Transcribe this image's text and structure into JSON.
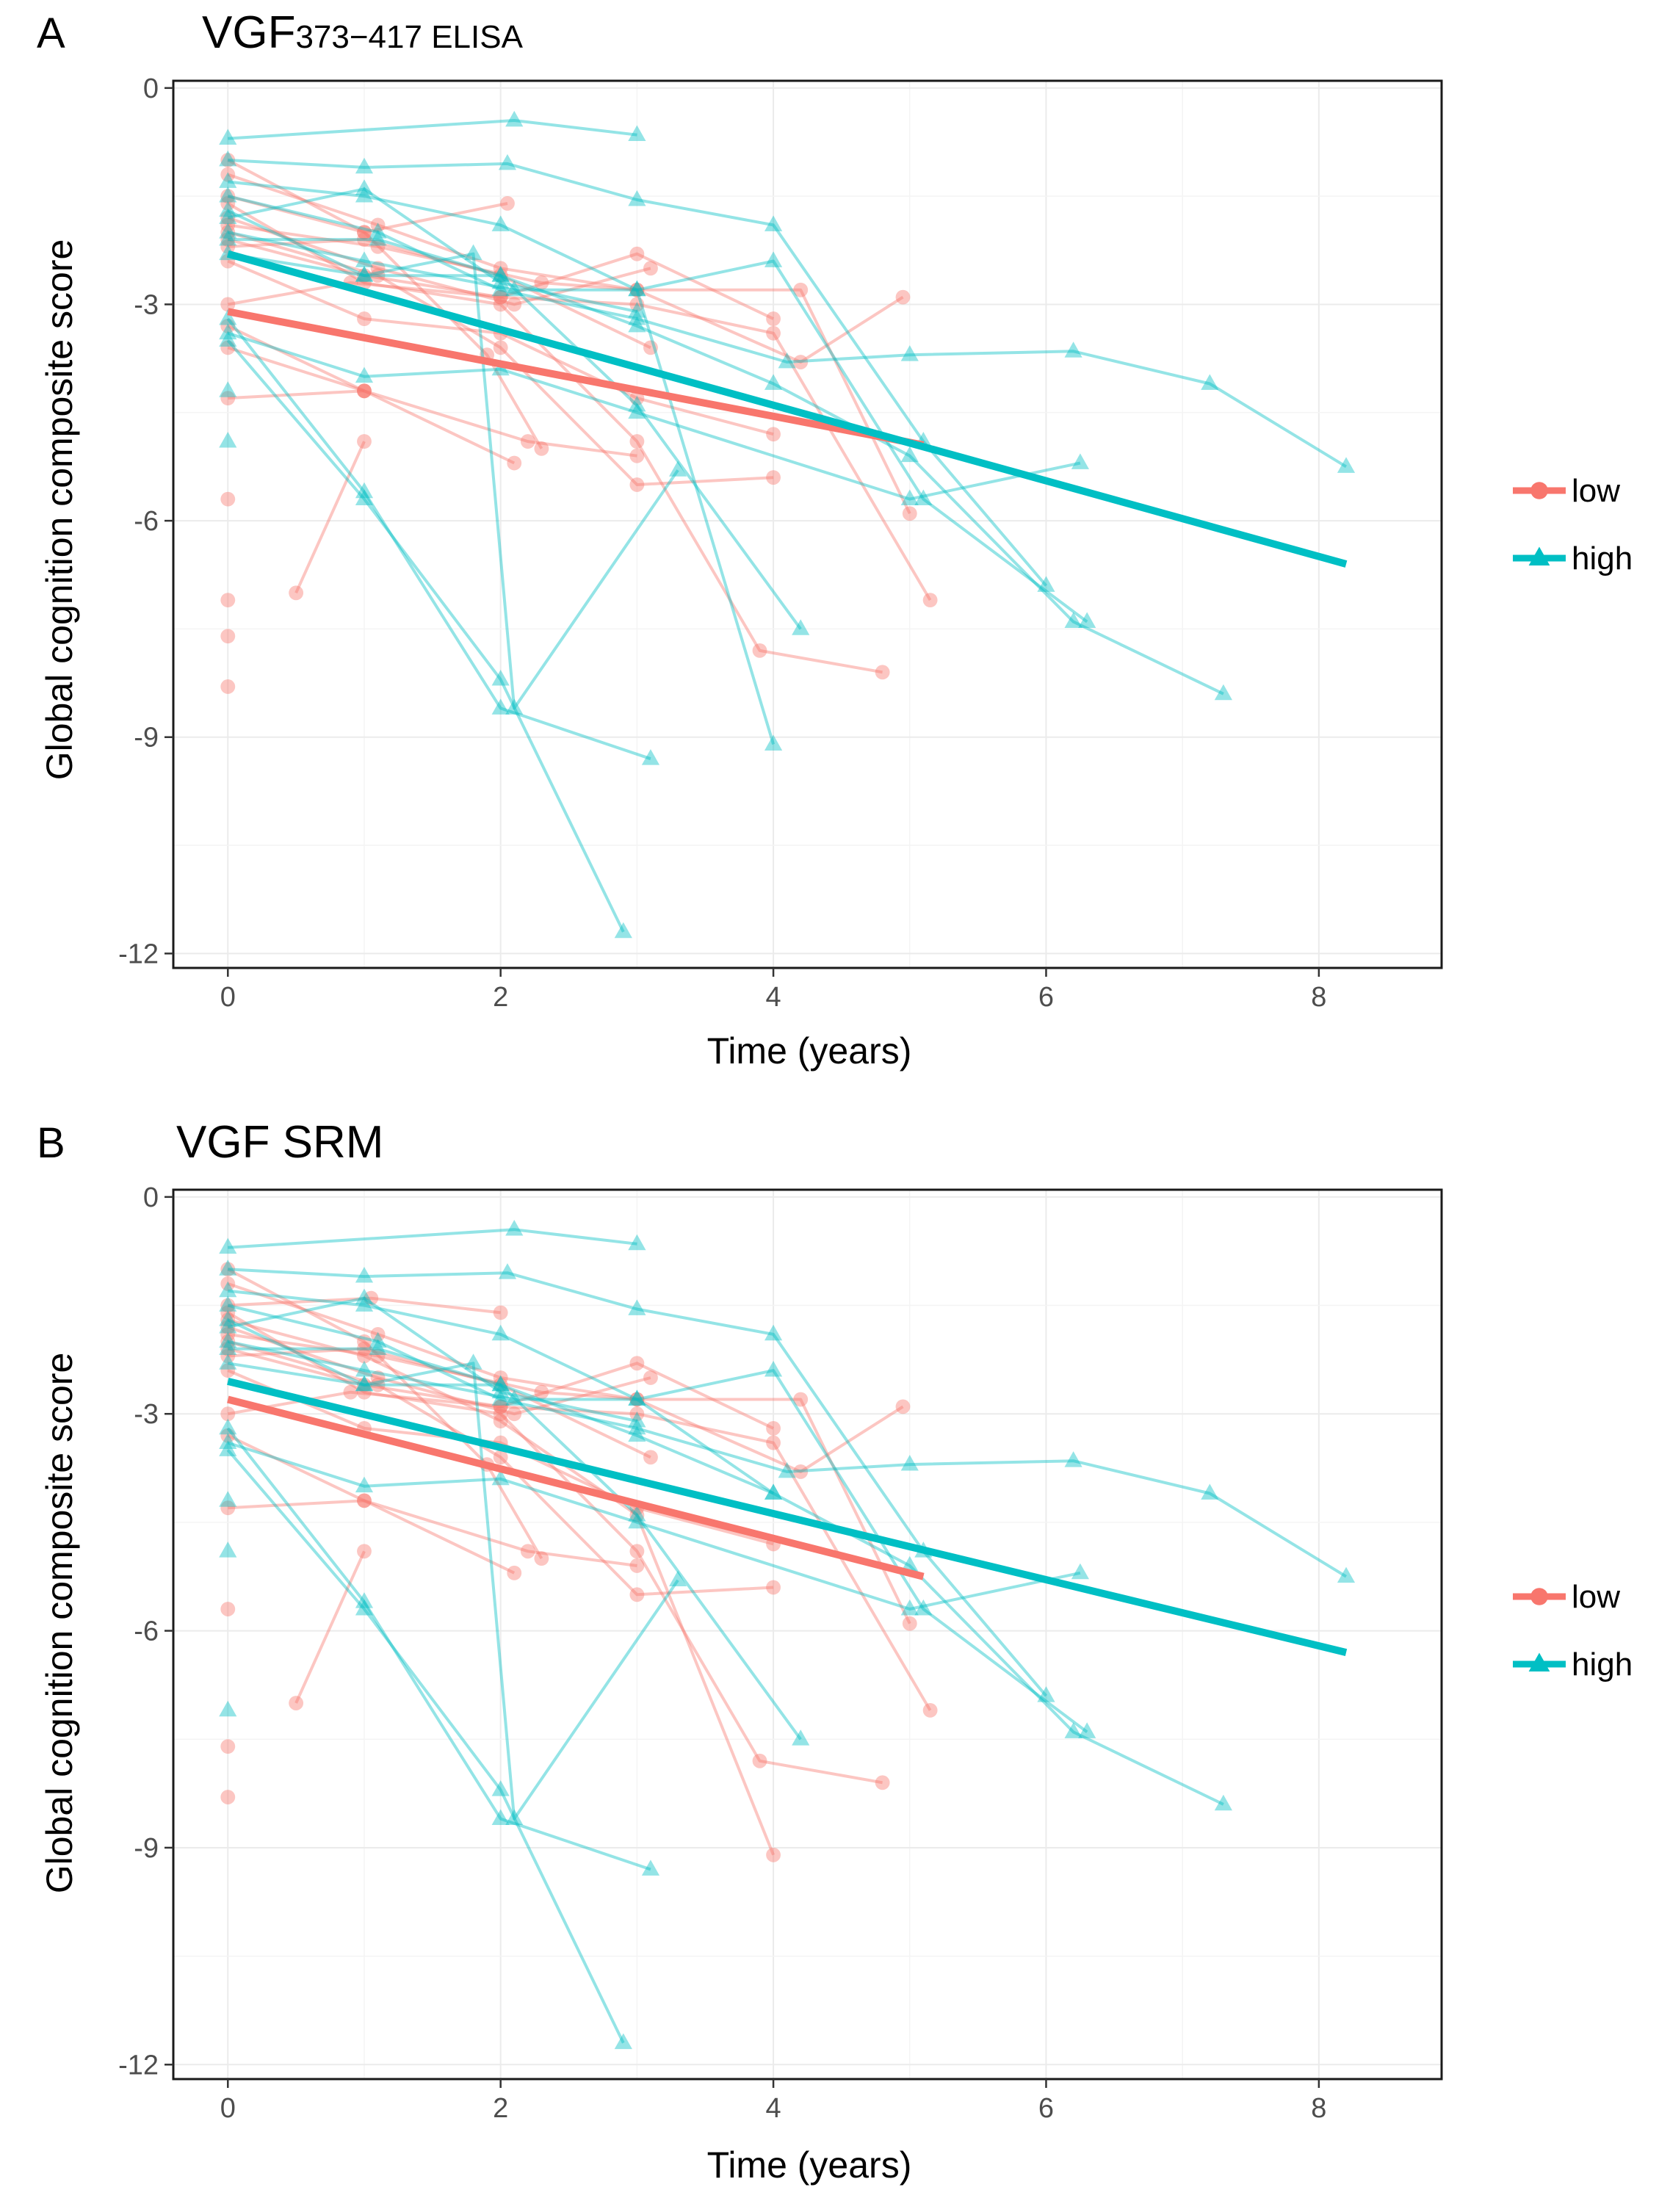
{
  "colors": {
    "low": "#F8766D",
    "high": "#00BFC4"
  },
  "chart_data": [
    {
      "type": "line",
      "panel_label": "A",
      "title_main": "VGF",
      "title_sub": "373−417 ELISA",
      "xlabel": "Time (years)",
      "ylabel": "Global cognition composite score",
      "xlim": [
        -0.4,
        8.9
      ],
      "ylim": [
        -12.2,
        0.1
      ],
      "x_ticks": [
        0,
        2,
        4,
        6,
        8
      ],
      "x_tick_labels": [
        "0",
        "2",
        "4",
        "6",
        "8"
      ],
      "y_ticks": [
        0,
        -3,
        -6,
        -9,
        -12
      ],
      "y_tick_labels": [
        "0",
        "-3",
        "-6",
        "-9",
        "-12"
      ],
      "grid": true,
      "legend": {
        "position": "right",
        "entries": [
          {
            "group": "low",
            "label": "low"
          },
          {
            "group": "high",
            "label": "high"
          }
        ]
      },
      "fits": [
        {
          "group": "low",
          "x": [
            0,
            5.1
          ],
          "y": [
            -3.1,
            -4.95
          ]
        },
        {
          "group": "high",
          "x": [
            0,
            8.2
          ],
          "y": [
            -2.3,
            -6.6
          ]
        }
      ],
      "series": [
        {
          "group": "low",
          "x": [
            0,
            1,
            2.05
          ],
          "y": [
            -1.5,
            -2.0,
            -1.6
          ]
        },
        {
          "group": "low",
          "x": [
            0,
            1.1,
            2.1,
            3.1
          ],
          "y": [
            -1.8,
            -2.5,
            -3.0,
            -2.5
          ]
        },
        {
          "group": "low",
          "x": [
            0,
            0.9,
            2.0,
            3.0,
            4.0
          ],
          "y": [
            -3.0,
            -2.7,
            -2.9,
            -2.3,
            -3.2
          ]
        },
        {
          "group": "low",
          "x": [
            0,
            1.0,
            2.2,
            3.0
          ],
          "y": [
            -4.3,
            -4.2,
            -4.9,
            -5.1
          ]
        },
        {
          "group": "low",
          "x": [
            0,
            1.1,
            2.0,
            3.0,
            4.0
          ],
          "y": [
            -2.0,
            -2.6,
            -3.6,
            -5.5,
            -5.4
          ]
        },
        {
          "group": "low",
          "x": [
            0,
            1.0,
            2.1
          ],
          "y": [
            -3.3,
            -4.2,
            -5.2
          ]
        },
        {
          "group": "low",
          "x": [
            0,
            1.0
          ],
          "y": [
            -3.6,
            -4.2
          ]
        },
        {
          "group": "low",
          "x": [
            0,
            1.0,
            2.0,
            3.0,
            3.9,
            4.8
          ],
          "y": [
            -1.6,
            -2.7,
            -3.0,
            -4.9,
            -7.8,
            -8.1
          ]
        },
        {
          "group": "low",
          "x": [
            0.5,
            1.0
          ],
          "y": [
            -7.0,
            -4.9
          ]
        },
        {
          "group": "low",
          "x": [
            0,
            1.0,
            2.0,
            3.0,
            4.0
          ],
          "y": [
            -2.4,
            -3.2,
            -3.4,
            -4.3,
            -4.8
          ]
        },
        {
          "group": "low",
          "x": [
            0,
            1.1,
            2.0,
            3.0,
            4.2,
            5.0
          ],
          "y": [
            -1.2,
            -1.9,
            -2.5,
            -2.8,
            -2.8,
            -5.9
          ]
        },
        {
          "group": "low",
          "x": [
            0,
            1.0,
            2.0,
            3.1
          ],
          "y": [
            -2.2,
            -2.1,
            -2.6,
            -3.6
          ]
        },
        {
          "group": "low",
          "x": [
            0,
            1.1,
            2.3,
            3.0,
            4.2,
            4.95
          ],
          "y": [
            -1.9,
            -2.2,
            -2.7,
            -2.8,
            -3.8,
            -2.9
          ]
        },
        {
          "group": "low",
          "x": [
            0,
            1.0,
            2.0,
            3.0,
            4.0,
            5.15
          ],
          "y": [
            -2.1,
            -2.6,
            -2.9,
            -3.0,
            -3.4,
            -7.1
          ]
        },
        {
          "group": "low",
          "x": [
            0,
            1.0,
            1.9,
            2.3
          ],
          "y": [
            -1.0,
            -2.0,
            -3.7,
            -5.0
          ]
        },
        {
          "group": "low",
          "x": [
            0
          ],
          "y": [
            -5.7
          ]
        },
        {
          "group": "low",
          "x": [
            0
          ],
          "y": [
            -7.1
          ]
        },
        {
          "group": "low",
          "x": [
            0
          ],
          "y": [
            -7.6
          ]
        },
        {
          "group": "low",
          "x": [
            0
          ],
          "y": [
            -8.3
          ]
        },
        {
          "group": "high",
          "x": [
            0,
            2.1,
            3.0
          ],
          "y": [
            -0.7,
            -0.45,
            -0.65
          ]
        },
        {
          "group": "high",
          "x": [
            0,
            1.0,
            2.05,
            3.0,
            4.0,
            5.1,
            6.0
          ],
          "y": [
            -1.0,
            -1.1,
            -1.05,
            -1.55,
            -1.9,
            -4.9,
            -6.9
          ]
        },
        {
          "group": "high",
          "x": [
            0,
            1.0,
            2.0,
            3.0
          ],
          "y": [
            -1.8,
            -1.4,
            -2.7,
            -3.1
          ]
        },
        {
          "group": "high",
          "x": [
            0,
            1.1,
            2.0,
            3.0,
            4.1,
            5.0,
            6.2,
            7.2,
            8.2
          ],
          "y": [
            -1.5,
            -2.0,
            -2.8,
            -3.2,
            -3.8,
            -3.7,
            -3.65,
            -4.1,
            -5.25
          ]
        },
        {
          "group": "high",
          "x": [
            0,
            1.0,
            2.1,
            3.0,
            4.0,
            5.1,
            6.3
          ],
          "y": [
            -2.0,
            -2.4,
            -2.8,
            -2.8,
            -2.4,
            -5.7,
            -7.4
          ]
        },
        {
          "group": "high",
          "x": [
            0,
            1.0,
            2.0,
            3.1
          ],
          "y": [
            -3.2,
            -5.6,
            -8.6,
            -9.3
          ]
        },
        {
          "group": "high",
          "x": [
            0,
            1.0,
            2.0,
            2.9
          ],
          "y": [
            -3.5,
            -5.7,
            -8.2,
            -11.7
          ]
        },
        {
          "group": "high",
          "x": [
            0,
            1.0,
            1.8,
            2.1,
            3.3
          ],
          "y": [
            -2.3,
            -2.6,
            -2.3,
            -8.6,
            -5.3
          ]
        },
        {
          "group": "high",
          "x": [
            0,
            1.0,
            2.0,
            3.0,
            4.0
          ],
          "y": [
            -1.3,
            -1.5,
            -1.9,
            -2.8,
            -9.1
          ]
        },
        {
          "group": "high",
          "x": [
            0,
            1.0,
            2.0,
            3.0,
            4.2
          ],
          "y": [
            -1.7,
            -2.6,
            -2.6,
            -4.4,
            -7.5
          ]
        },
        {
          "group": "high",
          "x": [
            0,
            1.1,
            2.0,
            3.0,
            4.0,
            5.0,
            6.2,
            7.3
          ],
          "y": [
            -2.1,
            -2.1,
            -2.6,
            -3.3,
            -4.1,
            -5.1,
            -7.4,
            -8.4
          ]
        },
        {
          "group": "high",
          "x": [
            0,
            1.0,
            2.0,
            3.0,
            5.0,
            6.25
          ],
          "y": [
            -3.4,
            -4.0,
            -3.9,
            -4.5,
            -5.7,
            -5.2
          ]
        },
        {
          "group": "high",
          "x": [
            0
          ],
          "y": [
            -4.2
          ]
        },
        {
          "group": "high",
          "x": [
            0
          ],
          "y": [
            -4.9
          ]
        }
      ]
    },
    {
      "type": "line",
      "panel_label": "B",
      "title_main": "VGF SRM",
      "title_sub": "",
      "xlabel": "Time (years)",
      "ylabel": "Global cognition composite score",
      "xlim": [
        -0.4,
        8.9
      ],
      "ylim": [
        -12.2,
        0.1
      ],
      "x_ticks": [
        0,
        2,
        4,
        6,
        8
      ],
      "x_tick_labels": [
        "0",
        "2",
        "4",
        "6",
        "8"
      ],
      "y_ticks": [
        0,
        -3,
        -6,
        -9,
        -12
      ],
      "y_tick_labels": [
        "0",
        "-3",
        "-6",
        "-9",
        "-12"
      ],
      "grid": true,
      "legend": {
        "position": "right",
        "entries": [
          {
            "group": "low",
            "label": "low"
          },
          {
            "group": "high",
            "label": "high"
          }
        ]
      },
      "fits": [
        {
          "group": "low",
          "x": [
            0,
            5.1
          ],
          "y": [
            -2.8,
            -5.25
          ]
        },
        {
          "group": "high",
          "x": [
            0,
            8.2
          ],
          "y": [
            -2.55,
            -6.3
          ]
        }
      ],
      "series": [
        {
          "group": "low",
          "x": [
            0,
            1.05,
            2.0
          ],
          "y": [
            -1.5,
            -1.4,
            -1.6
          ]
        },
        {
          "group": "low",
          "x": [
            0,
            1.1,
            2.1,
            3.1
          ],
          "y": [
            -1.8,
            -2.5,
            -3.0,
            -2.5
          ]
        },
        {
          "group": "low",
          "x": [
            0,
            0.9,
            2.0,
            3.0,
            4.0
          ],
          "y": [
            -3.0,
            -2.7,
            -2.9,
            -2.3,
            -3.2
          ]
        },
        {
          "group": "low",
          "x": [
            0,
            1.0,
            2.2,
            3.0
          ],
          "y": [
            -4.3,
            -4.2,
            -4.9,
            -5.1
          ]
        },
        {
          "group": "low",
          "x": [
            0,
            1.1,
            2.0,
            3.0,
            4.0
          ],
          "y": [
            -2.0,
            -2.6,
            -3.6,
            -5.5,
            -5.4
          ]
        },
        {
          "group": "low",
          "x": [
            0,
            1.0,
            2.1
          ],
          "y": [
            -3.3,
            -4.2,
            -5.2
          ]
        },
        {
          "group": "low",
          "x": [
            0,
            1.0,
            2.0,
            3.0,
            3.9,
            4.8
          ],
          "y": [
            -1.6,
            -2.7,
            -3.0,
            -4.9,
            -7.8,
            -8.1
          ]
        },
        {
          "group": "low",
          "x": [
            0.5,
            1.0
          ],
          "y": [
            -7.0,
            -4.9
          ]
        },
        {
          "group": "low",
          "x": [
            0,
            1.0,
            2.0,
            3.0,
            4.0
          ],
          "y": [
            -2.4,
            -3.2,
            -3.4,
            -4.3,
            -4.8
          ]
        },
        {
          "group": "low",
          "x": [
            0,
            1.1,
            2.0,
            3.0,
            4.2,
            5.0
          ],
          "y": [
            -1.2,
            -1.9,
            -2.5,
            -2.8,
            -2.8,
            -5.9
          ]
        },
        {
          "group": "low",
          "x": [
            0,
            1.0,
            2.0,
            3.1
          ],
          "y": [
            -2.2,
            -2.1,
            -2.6,
            -3.6
          ]
        },
        {
          "group": "low",
          "x": [
            0,
            1.1,
            2.3,
            3.0,
            4.2,
            4.95
          ],
          "y": [
            -1.9,
            -2.2,
            -2.7,
            -2.8,
            -3.8,
            -2.9
          ]
        },
        {
          "group": "low",
          "x": [
            0,
            1.0,
            2.0,
            3.0,
            4.0,
            5.15
          ],
          "y": [
            -2.1,
            -2.6,
            -2.9,
            -3.0,
            -3.4,
            -7.1
          ]
        },
        {
          "group": "low",
          "x": [
            0,
            1.0,
            1.9,
            2.3
          ],
          "y": [
            -1.0,
            -2.0,
            -3.7,
            -5.0
          ]
        },
        {
          "group": "low",
          "x": [
            0,
            1.0,
            2.0,
            3.0,
            4.0
          ],
          "y": [
            -1.7,
            -2.2,
            -3.1,
            -4.4,
            -9.1
          ]
        },
        {
          "group": "low",
          "x": [
            0
          ],
          "y": [
            -5.7
          ]
        },
        {
          "group": "low",
          "x": [
            0
          ],
          "y": [
            -7.6
          ]
        },
        {
          "group": "low",
          "x": [
            0
          ],
          "y": [
            -8.3
          ]
        },
        {
          "group": "high",
          "x": [
            0,
            2.1,
            3.0
          ],
          "y": [
            -0.7,
            -0.45,
            -0.65
          ]
        },
        {
          "group": "high",
          "x": [
            0,
            1.0,
            2.05,
            3.0,
            4.0,
            5.1,
            6.0
          ],
          "y": [
            -1.0,
            -1.1,
            -1.05,
            -1.55,
            -1.9,
            -4.9,
            -6.9
          ]
        },
        {
          "group": "high",
          "x": [
            0,
            1.0,
            2.0,
            3.0
          ],
          "y": [
            -1.8,
            -1.4,
            -2.7,
            -3.1
          ]
        },
        {
          "group": "high",
          "x": [
            0,
            1.1,
            2.0,
            3.0,
            4.1,
            5.0,
            6.2,
            7.2,
            8.2
          ],
          "y": [
            -1.5,
            -2.0,
            -2.8,
            -3.2,
            -3.8,
            -3.7,
            -3.65,
            -4.1,
            -5.25
          ]
        },
        {
          "group": "high",
          "x": [
            0,
            1.0,
            2.1,
            3.0,
            4.0,
            5.1,
            6.3
          ],
          "y": [
            -2.0,
            -2.4,
            -2.8,
            -2.8,
            -2.4,
            -5.7,
            -7.4
          ]
        },
        {
          "group": "high",
          "x": [
            0,
            1.0,
            2.0,
            3.1
          ],
          "y": [
            -3.2,
            -5.6,
            -8.6,
            -9.3
          ]
        },
        {
          "group": "high",
          "x": [
            0,
            1.0,
            2.0,
            2.9
          ],
          "y": [
            -3.5,
            -5.7,
            -8.2,
            -11.7
          ]
        },
        {
          "group": "high",
          "x": [
            0,
            1.0,
            1.8,
            2.1,
            3.3
          ],
          "y": [
            -2.3,
            -2.6,
            -2.3,
            -8.6,
            -5.3
          ]
        },
        {
          "group": "high",
          "x": [
            0,
            1.0,
            2.0,
            3.0,
            4.0
          ],
          "y": [
            -1.3,
            -1.5,
            -1.9,
            -2.8,
            -4.1
          ]
        },
        {
          "group": "high",
          "x": [
            0,
            1.0,
            2.0,
            3.0,
            4.2
          ],
          "y": [
            -1.7,
            -2.6,
            -2.6,
            -4.4,
            -7.5
          ]
        },
        {
          "group": "high",
          "x": [
            0,
            1.1,
            2.0,
            3.0,
            4.0,
            5.0,
            6.2,
            7.3
          ],
          "y": [
            -2.1,
            -2.1,
            -2.6,
            -3.3,
            -4.1,
            -5.1,
            -7.4,
            -8.4
          ]
        },
        {
          "group": "high",
          "x": [
            0,
            1.0,
            2.0,
            3.0,
            5.0,
            6.25
          ],
          "y": [
            -3.4,
            -4.0,
            -3.9,
            -4.5,
            -5.7,
            -5.2
          ]
        },
        {
          "group": "high",
          "x": [
            0
          ],
          "y": [
            -4.2
          ]
        },
        {
          "group": "high",
          "x": [
            0
          ],
          "y": [
            -4.9
          ]
        },
        {
          "group": "high",
          "x": [
            0
          ],
          "y": [
            -7.1
          ]
        }
      ]
    }
  ]
}
